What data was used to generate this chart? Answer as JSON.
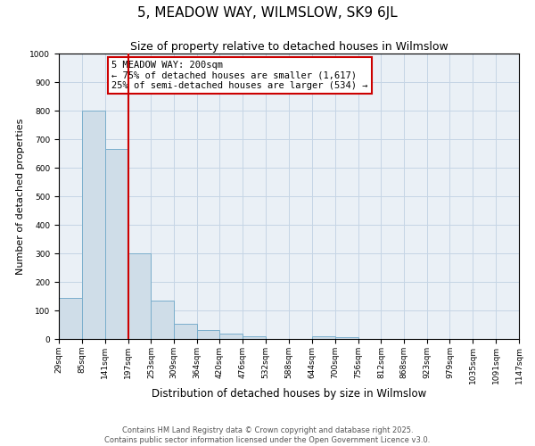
{
  "title": "5, MEADOW WAY, WILMSLOW, SK9 6JL",
  "subtitle": "Size of property relative to detached houses in Wilmslow",
  "xlabel": "Distribution of detached houses by size in Wilmslow",
  "ylabel": "Number of detached properties",
  "bar_edges": [
    29,
    85,
    141,
    197,
    253,
    309,
    364,
    420,
    476,
    532,
    588,
    644,
    700,
    756,
    812,
    868,
    923,
    979,
    1035,
    1091,
    1147
  ],
  "bar_heights": [
    145,
    800,
    665,
    300,
    135,
    52,
    30,
    18,
    10,
    0,
    0,
    8,
    5,
    0,
    0,
    0,
    0,
    0,
    0,
    0
  ],
  "bar_color": "#cfdde8",
  "bar_edgecolor": "#7aaecc",
  "vline_x": 197,
  "vline_color": "#cc0000",
  "annotation_line1": "5 MEADOW WAY: 200sqm",
  "annotation_line2": "← 75% of detached houses are smaller (1,617)",
  "annotation_line3": "25% of semi-detached houses are larger (534) →",
  "annotation_box_color": "#cc0000",
  "ylim": [
    0,
    1000
  ],
  "tick_labels": [
    "29sqm",
    "85sqm",
    "141sqm",
    "197sqm",
    "253sqm",
    "309sqm",
    "364sqm",
    "420sqm",
    "476sqm",
    "532sqm",
    "588sqm",
    "644sqm",
    "700sqm",
    "756sqm",
    "812sqm",
    "868sqm",
    "923sqm",
    "979sqm",
    "1035sqm",
    "1091sqm",
    "1147sqm"
  ],
  "footer_line1": "Contains HM Land Registry data © Crown copyright and database right 2025.",
  "footer_line2": "Contains public sector information licensed under the Open Government Licence v3.0.",
  "bg_color": "#eaf0f6",
  "grid_color": "#c5d5e5",
  "title_fontsize": 11,
  "subtitle_fontsize": 9,
  "xlabel_fontsize": 8.5,
  "ylabel_fontsize": 8,
  "footer_fontsize": 6,
  "tick_fontsize": 6.5,
  "annot_fontsize": 7.5
}
